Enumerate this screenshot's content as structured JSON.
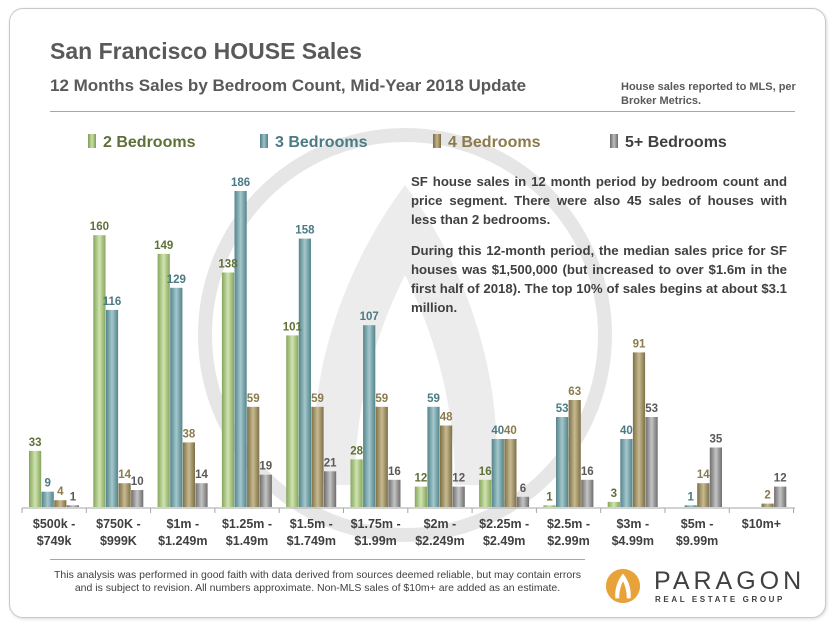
{
  "title": "San Francisco HOUSE Sales",
  "subtitle": "12 Months Sales by Bedroom Count, Mid-Year 2018 Update",
  "source_note": "House sales reported to MLS, per Broker Metrics.",
  "info_paragraphs": [
    "SF house sales in 12 month period by bedroom count and price segment. There were also 45 sales of houses with less than 2 bedrooms.",
    "During this 12-month period, the median sales price for SF houses was $1,500,000 (but increased to over $1.6m in the first half of 2018). The top 10% of sales begins at about $3.1 million."
  ],
  "disclaimer": "This analysis was performed in good faith with data derived from sources deemed reliable, but may contain errors and is subject to revision. All numbers approximate. Non-MLS sales of $10m+ are added as an estimate.",
  "brand": {
    "name": "PARAGON",
    "tagline": "REAL ESTATE GROUP"
  },
  "colors": {
    "s2": "#a4c57d",
    "s3": "#6d9ea4",
    "s4": "#9c8b5e",
    "s5": "#8c8c8c",
    "text": "#595959"
  },
  "chart_data": {
    "type": "bar",
    "title": "12 Months Sales by Bedroom Count, Mid-Year 2018 Update",
    "xlabel": "",
    "ylabel": "",
    "ylim": [
      0,
      186
    ],
    "grid": false,
    "legend_position": "top",
    "categories": [
      [
        "$500k -",
        "$749k"
      ],
      [
        "$750K -",
        "$999K"
      ],
      [
        "$1m -",
        "$1.249m"
      ],
      [
        "$1.25m -",
        "$1.49m"
      ],
      [
        "$1.5m -",
        "$1.749m"
      ],
      [
        "$1.75m -",
        "$1.99m"
      ],
      [
        "$2m -",
        "$2.249m"
      ],
      [
        "$2.25m -",
        "$2.49m"
      ],
      [
        "$2.5m -",
        "$2.99m"
      ],
      [
        "$3m -",
        "$4.99m"
      ],
      [
        "$5m -",
        "$9.99m"
      ],
      [
        "$10m+",
        ""
      ]
    ],
    "series": [
      {
        "name": "2 Bedrooms",
        "color": "#a4c57d",
        "label_color": "#5e7038",
        "values": [
          33,
          160,
          149,
          138,
          101,
          28,
          12,
          16,
          1,
          3,
          0,
          0
        ]
      },
      {
        "name": "3 Bedrooms",
        "color": "#6d9ea4",
        "label_color": "#4a7a83",
        "values": [
          9,
          116,
          129,
          186,
          158,
          107,
          59,
          40,
          53,
          40,
          1,
          0
        ]
      },
      {
        "name": "4 Bedrooms",
        "color": "#9c8b5e",
        "label_color": "#8a7a4c",
        "values": [
          4,
          14,
          38,
          59,
          59,
          59,
          48,
          40,
          63,
          91,
          14,
          2
        ]
      },
      {
        "name": "5+ Bedrooms",
        "color": "#8c8c8c",
        "label_color": "#595959",
        "values": [
          1,
          10,
          14,
          19,
          21,
          16,
          12,
          6,
          16,
          53,
          35,
          12
        ]
      }
    ],
    "hidden_labels": [
      [
        10,
        0
      ],
      [
        11,
        0
      ],
      [
        11,
        1
      ]
    ]
  }
}
